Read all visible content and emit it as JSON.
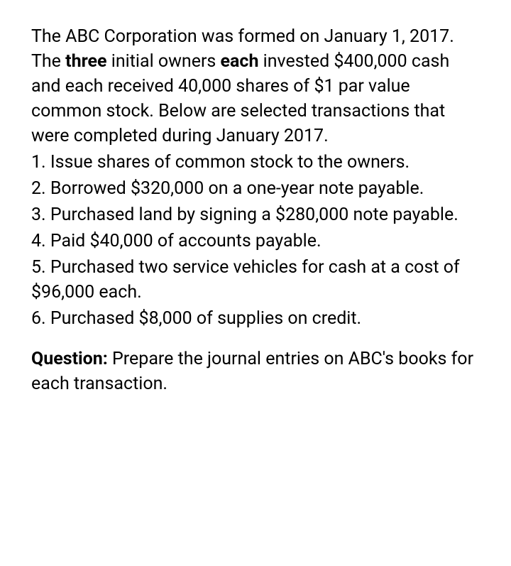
{
  "intro": {
    "part1": "The ABC Corporation was formed on January 1, 2017. The ",
    "bold1": "three",
    "part2": " initial owners ",
    "bold2": "each",
    "part3": " invested $400,000 cash and each received 40,000 shares of $1 par value common stock. Below are selected transactions that were completed during January 2017."
  },
  "items": {
    "t1": "1. Issue shares of common stock to the owners.",
    "t2": "2. Borrowed $320,000 on a one-year note payable.",
    "t3": "3. Purchased land by signing a $280,000 note payable.",
    "t4": "4. Paid $40,000 of accounts payable.",
    "t5": "5. Purchased two service vehicles for cash at a cost of $96,000 each.",
    "t6": "6. Purchased $8,000 of supplies on credit."
  },
  "question": {
    "label": "Question:",
    "text": " Prepare the journal entries on ABC's books for each transaction."
  }
}
